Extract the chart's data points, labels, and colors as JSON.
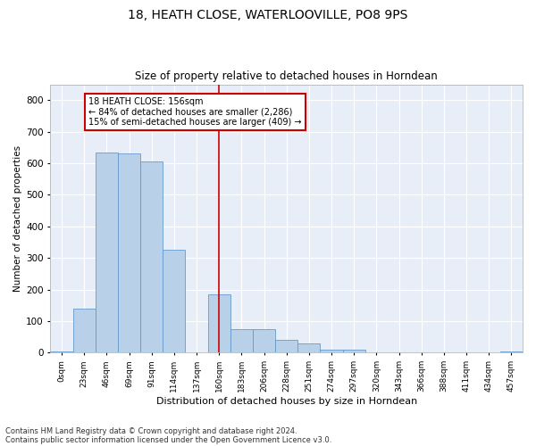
{
  "title": "18, HEATH CLOSE, WATERLOOVILLE, PO8 9PS",
  "subtitle": "Size of property relative to detached houses in Horndean",
  "xlabel": "Distribution of detached houses by size in Horndean",
  "ylabel": "Number of detached properties",
  "bar_color": "#b8d0e8",
  "bar_edge_color": "#6699cc",
  "highlight_line_color": "#cc0000",
  "highlight_box_color": "#cc0000",
  "background_color": "#e8eef8",
  "tick_labels": [
    "0sqm",
    "23sqm",
    "46sqm",
    "69sqm",
    "91sqm",
    "114sqm",
    "137sqm",
    "160sqm",
    "183sqm",
    "206sqm",
    "228sqm",
    "251sqm",
    "274sqm",
    "297sqm",
    "320sqm",
    "343sqm",
    "366sqm",
    "388sqm",
    "411sqm",
    "434sqm",
    "457sqm"
  ],
  "bar_values": [
    5,
    140,
    635,
    630,
    605,
    325,
    0,
    185,
    75,
    75,
    40,
    30,
    10,
    10,
    0,
    0,
    0,
    0,
    0,
    0,
    5
  ],
  "highlight_index": 7,
  "annotation_line1": "18 HEATH CLOSE: 156sqm",
  "annotation_line2": "← 84% of detached houses are smaller (2,286)",
  "annotation_line3": "15% of semi-detached houses are larger (409) →",
  "ylim": [
    0,
    850
  ],
  "yticks": [
    0,
    100,
    200,
    300,
    400,
    500,
    600,
    700,
    800
  ],
  "footnote1": "Contains HM Land Registry data © Crown copyright and database right 2024.",
  "footnote2": "Contains public sector information licensed under the Open Government Licence v3.0."
}
